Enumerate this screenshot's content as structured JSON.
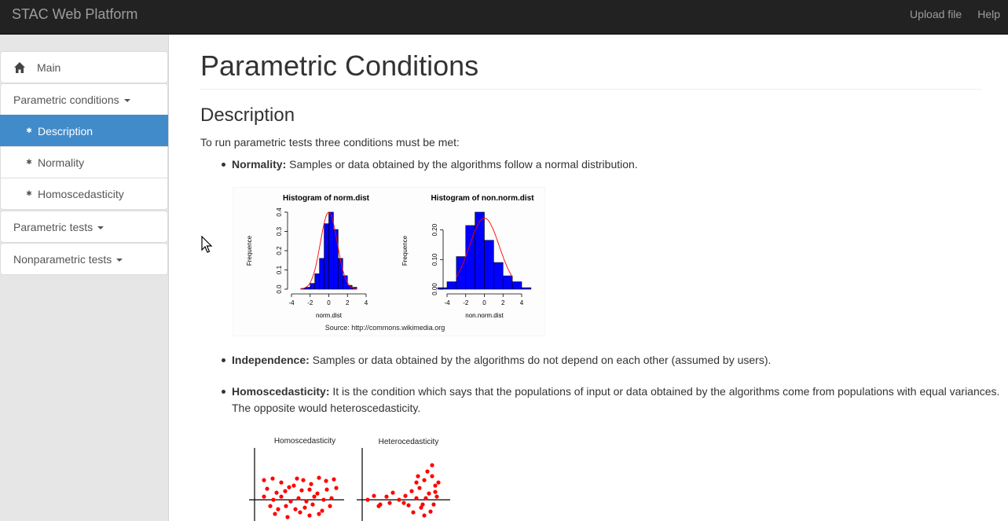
{
  "navbar": {
    "brand": "STAC Web Platform",
    "links": [
      "Upload file",
      "Help"
    ]
  },
  "sidebar": {
    "items": [
      {
        "label": "Main",
        "icon": "home-icon"
      },
      {
        "label": "Parametric conditions"
      },
      {
        "label": "Description",
        "active": true
      },
      {
        "label": "Normality"
      },
      {
        "label": "Homoscedasticity"
      },
      {
        "label": "Parametric tests"
      },
      {
        "label": "Nonparametric tests"
      }
    ],
    "active_color": "#428bca"
  },
  "main": {
    "title": "Parametric Conditions",
    "section": "Description",
    "intro": "To run parametric tests three conditions must be met:",
    "conditions": [
      {
        "term": "Normality:",
        "text": " Samples or data obtained by the algorithms follow a normal distribution."
      },
      {
        "term": "Independence:",
        "text": " Samples or data obtained by the algorithms do not depend on each other (assumed by users)."
      },
      {
        "term": "Homoscedasticity:",
        "text": " It is the condition which says that the populations of input or data obtained by the algorithms come from populations with equal variances. The opposite would heteroscedasticity."
      }
    ]
  },
  "histogram_figure": {
    "source": "Source: http://commons.wikimedia.org",
    "charts": [
      {
        "title": "Histogram of norm.dist",
        "xlabel": "norm.dist",
        "ylabel": "Frequence",
        "xticks": [
          "-4",
          "-2",
          "0",
          "2",
          "4"
        ],
        "yticks": [
          "0.0",
          "0.1",
          "0.2",
          "0.3",
          "0.4"
        ],
        "ylim": [
          0,
          0.4
        ],
        "bins": [
          -3,
          -2.5,
          -2,
          -1.5,
          -1,
          -0.5,
          0,
          0.5,
          1,
          1.5,
          2,
          2.5,
          3
        ],
        "density": [
          0.004,
          0.01,
          0.03,
          0.08,
          0.16,
          0.34,
          0.4,
          0.31,
          0.16,
          0.07,
          0.02,
          0.01
        ],
        "bar_color": "#0000ff",
        "curve_color": "#ff0000"
      },
      {
        "title": "Histogram of non.norm.dist",
        "xlabel": "non.norm.dist",
        "ylabel": "Frequence",
        "xticks": [
          "-4",
          "-2",
          "0",
          "2",
          "4"
        ],
        "yticks": [
          "0.00",
          "0.10",
          "0.20"
        ],
        "ylim": [
          0,
          0.26
        ],
        "bins": [
          -5,
          -4,
          -3,
          -2,
          -1,
          0,
          1,
          2,
          3,
          4,
          5
        ],
        "density": [
          0.005,
          0.025,
          0.11,
          0.215,
          0.26,
          0.165,
          0.09,
          0.045,
          0.025,
          0.005
        ],
        "bar_color": "#0000ff",
        "curve_color": "#ff0000"
      }
    ]
  },
  "scatter_figure": {
    "panels": [
      {
        "title": "Homoscedasticity"
      },
      {
        "title": "Heterocedasticity"
      }
    ],
    "dot_color": "#ff0000"
  }
}
